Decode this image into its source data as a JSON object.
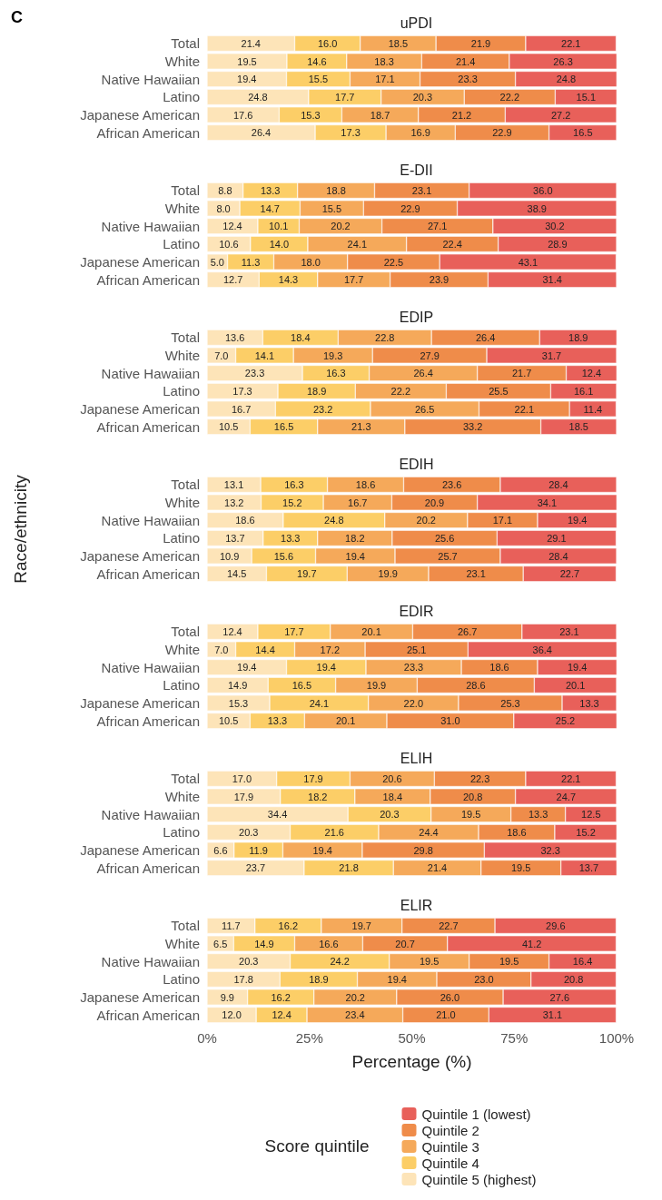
{
  "chart_data": [
    {
      "type": "bar",
      "title": "uPDI",
      "annotations": [
        "C"
      ],
      "orientation": "horizontal",
      "stacked": true,
      "tick_labels": "y",
      "xlim": [
        0,
        100
      ],
      "categories": [
        "Total",
        "White",
        "Native Hawaiian",
        "Latino",
        "Japanese American",
        "African American"
      ],
      "series": [
        {
          "color": "#fde4b8",
          "values": [
            21.4,
            19.5,
            19.4,
            24.8,
            17.6,
            26.4
          ],
          "value_labels": [
            "21.4",
            "19.5",
            "19.4",
            "24.8",
            "17.6",
            "26.4"
          ]
        },
        {
          "color": "#fcce67",
          "values": [
            16.0,
            14.6,
            15.5,
            17.7,
            15.3,
            17.3
          ],
          "value_labels": [
            "16.0",
            "14.6",
            "15.5",
            "17.7",
            "15.3",
            "17.3"
          ]
        },
        {
          "color": "#f5a95a",
          "values": [
            18.5,
            18.3,
            17.1,
            20.3,
            18.7,
            16.9
          ],
          "value_labels": [
            "18.5",
            "18.3",
            "17.1",
            "20.3",
            "18.7",
            "16.9"
          ]
        },
        {
          "color": "#ef8c4a",
          "values": [
            21.9,
            21.4,
            23.3,
            22.2,
            21.2,
            22.9
          ],
          "value_labels": [
            "21.9",
            "21.4",
            "23.3",
            "22.2",
            "21.2",
            "22.9"
          ]
        },
        {
          "color": "#e8605a",
          "values": [
            22.1,
            26.3,
            24.8,
            15.1,
            27.2,
            16.5
          ],
          "value_labels": [
            "22.1",
            "26.3",
            "24.8",
            "15.1",
            "27.2",
            "16.5"
          ]
        }
      ]
    },
    {
      "type": "bar",
      "title": "E-DII",
      "orientation": "horizontal",
      "stacked": true,
      "tick_labels": "y",
      "xlim": [
        0,
        100
      ],
      "categories": [
        "Total",
        "White",
        "Native Hawaiian",
        "Latino",
        "Japanese American",
        "African American"
      ],
      "series": [
        {
          "color": "#fde4b8",
          "values": [
            8.8,
            8.0,
            12.4,
            10.6,
            5.0,
            12.7
          ],
          "value_labels": [
            "8.8",
            "8.0",
            "12.4",
            "10.6",
            "5.0",
            "12.7"
          ]
        },
        {
          "color": "#fcce67",
          "values": [
            13.3,
            14.7,
            10.1,
            14.0,
            11.3,
            14.3
          ],
          "value_labels": [
            "13.3",
            "14.7",
            "10.1",
            "14.0",
            "11.3",
            "14.3"
          ]
        },
        {
          "color": "#f5a95a",
          "values": [
            18.8,
            15.5,
            20.2,
            24.1,
            18.0,
            17.7
          ],
          "value_labels": [
            "18.8",
            "15.5",
            "20.2",
            "24.1",
            "18.0",
            "17.7"
          ]
        },
        {
          "color": "#ef8c4a",
          "values": [
            23.1,
            22.9,
            27.1,
            22.4,
            22.5,
            23.9
          ],
          "value_labels": [
            "23.1",
            "22.9",
            "27.1",
            "22.4",
            "22.5",
            "23.9"
          ]
        },
        {
          "color": "#e8605a",
          "values": [
            36.0,
            38.9,
            30.2,
            28.9,
            43.1,
            31.4
          ],
          "value_labels": [
            "36.0",
            "38.9",
            "30.2",
            "28.9",
            "43.1",
            "31.4"
          ]
        }
      ]
    },
    {
      "type": "bar",
      "title": "EDIP",
      "orientation": "horizontal",
      "stacked": true,
      "tick_labels": "y",
      "xlim": [
        0,
        100
      ],
      "categories": [
        "Total",
        "White",
        "Native Hawaiian",
        "Latino",
        "Japanese American",
        "African American"
      ],
      "series": [
        {
          "color": "#fde4b8",
          "values": [
            13.6,
            7.0,
            23.3,
            17.3,
            16.7,
            10.5
          ],
          "value_labels": [
            "13.6",
            "7.0",
            "23.3",
            "17.3",
            "16.7",
            "10.5"
          ]
        },
        {
          "color": "#fcce67",
          "values": [
            18.4,
            14.1,
            16.3,
            18.9,
            23.2,
            16.5
          ],
          "value_labels": [
            "18.4",
            "14.1",
            "16.3",
            "18.9",
            "23.2",
            "16.5"
          ]
        },
        {
          "color": "#f5a95a",
          "values": [
            22.8,
            19.3,
            26.4,
            22.2,
            26.5,
            21.3
          ],
          "value_labels": [
            "22.8",
            "19.3",
            "26.4",
            "22.2",
            "26.5",
            "21.3"
          ]
        },
        {
          "color": "#ef8c4a",
          "values": [
            26.4,
            27.9,
            21.7,
            25.5,
            22.1,
            33.2
          ],
          "value_labels": [
            "26.4",
            "27.9",
            "21.7",
            "25.5",
            "22.1",
            "33.2"
          ]
        },
        {
          "color": "#e8605a",
          "values": [
            18.9,
            31.7,
            12.4,
            16.1,
            11.4,
            18.5
          ],
          "value_labels": [
            "18.9",
            "31.7",
            "12.4",
            "16.1",
            "11.4",
            "18.5"
          ]
        }
      ]
    },
    {
      "type": "bar",
      "title": "EDIH",
      "ylabel": "Race/ethnicity",
      "orientation": "horizontal",
      "stacked": true,
      "tick_labels": "y",
      "xlim": [
        0,
        100
      ],
      "categories": [
        "Total",
        "White",
        "Native Hawaiian",
        "Latino",
        "Japanese American",
        "African American"
      ],
      "series": [
        {
          "color": "#fde4b8",
          "values": [
            13.1,
            13.2,
            18.6,
            13.7,
            10.9,
            14.5
          ],
          "value_labels": [
            "13.1",
            "13.2",
            "18.6",
            "13.7",
            "10.9",
            "14.5"
          ]
        },
        {
          "color": "#fcce67",
          "values": [
            16.3,
            15.2,
            24.8,
            13.3,
            15.6,
            19.7
          ],
          "value_labels": [
            "16.3",
            "15.2",
            "24.8",
            "13.3",
            "15.6",
            "19.7"
          ]
        },
        {
          "color": "#f5a95a",
          "values": [
            18.6,
            16.7,
            20.2,
            18.2,
            19.4,
            19.9
          ],
          "value_labels": [
            "18.6",
            "16.7",
            "20.2",
            "18.2",
            "19.4",
            "19.9"
          ]
        },
        {
          "color": "#ef8c4a",
          "values": [
            23.6,
            20.9,
            17.1,
            25.6,
            25.7,
            23.1
          ],
          "value_labels": [
            "23.6",
            "20.9",
            "17.1",
            "25.6",
            "25.7",
            "23.1"
          ]
        },
        {
          "color": "#e8605a",
          "values": [
            28.4,
            34.1,
            19.4,
            29.1,
            28.4,
            22.7
          ],
          "value_labels": [
            "28.4",
            "34.1",
            "19.4",
            "29.1",
            "28.4",
            "22.7"
          ]
        }
      ]
    },
    {
      "type": "bar",
      "title": "EDIR",
      "orientation": "horizontal",
      "stacked": true,
      "tick_labels": "y",
      "xlim": [
        0,
        100
      ],
      "categories": [
        "Total",
        "White",
        "Native Hawaiian",
        "Latino",
        "Japanese American",
        "African American"
      ],
      "series": [
        {
          "color": "#fde4b8",
          "values": [
            12.4,
            7.0,
            19.4,
            14.9,
            15.3,
            10.5
          ],
          "value_labels": [
            "12.4",
            "7.0",
            "19.4",
            "14.9",
            "15.3",
            "10.5"
          ]
        },
        {
          "color": "#fcce67",
          "values": [
            17.7,
            14.4,
            19.4,
            16.5,
            24.1,
            13.3
          ],
          "value_labels": [
            "17.7",
            "14.4",
            "19.4",
            "16.5",
            "24.1",
            "13.3"
          ]
        },
        {
          "color": "#f5a95a",
          "values": [
            20.1,
            17.2,
            23.3,
            19.9,
            22.0,
            20.1
          ],
          "value_labels": [
            "20.1",
            "17.2",
            "23.3",
            "19.9",
            "22.0",
            "20.1"
          ]
        },
        {
          "color": "#ef8c4a",
          "values": [
            26.7,
            25.1,
            18.6,
            28.6,
            25.3,
            31.0
          ],
          "value_labels": [
            "26.7",
            "25.1",
            "18.6",
            "28.6",
            "25.3",
            "31.0"
          ]
        },
        {
          "color": "#e8605a",
          "values": [
            23.1,
            36.4,
            19.4,
            20.1,
            13.3,
            25.2
          ],
          "value_labels": [
            "23.1",
            "36.4",
            "19.4",
            "20.1",
            "13.3",
            "25.2"
          ]
        }
      ]
    },
    {
      "type": "bar",
      "title": "ELIH",
      "orientation": "horizontal",
      "stacked": true,
      "tick_labels": "y",
      "xlim": [
        0,
        100
      ],
      "categories": [
        "Total",
        "White",
        "Native Hawaiian",
        "Latino",
        "Japanese American",
        "African American"
      ],
      "series": [
        {
          "color": "#fde4b8",
          "values": [
            17.0,
            17.9,
            34.4,
            20.3,
            6.6,
            23.7
          ],
          "value_labels": [
            "17.0",
            "17.9",
            "34.4",
            "20.3",
            "6.6",
            "23.7"
          ]
        },
        {
          "color": "#fcce67",
          "values": [
            17.9,
            18.2,
            20.3,
            21.6,
            11.9,
            21.8
          ],
          "value_labels": [
            "17.9",
            "18.2",
            "20.3",
            "21.6",
            "11.9",
            "21.8"
          ]
        },
        {
          "color": "#f5a95a",
          "values": [
            20.6,
            18.4,
            19.5,
            24.4,
            19.4,
            21.4
          ],
          "value_labels": [
            "20.6",
            "18.4",
            "19.5",
            "24.4",
            "19.4",
            "21.4"
          ]
        },
        {
          "color": "#ef8c4a",
          "values": [
            22.3,
            20.8,
            13.3,
            18.6,
            29.8,
            19.5
          ],
          "value_labels": [
            "22.3",
            "20.8",
            "13.3",
            "18.6",
            "29.8",
            "19.5"
          ]
        },
        {
          "color": "#e8605a",
          "values": [
            22.1,
            24.7,
            12.5,
            15.2,
            32.3,
            13.7
          ],
          "value_labels": [
            "22.1",
            "24.7",
            "12.5",
            "15.2",
            "32.3",
            "13.7"
          ]
        }
      ]
    },
    {
      "type": "bar",
      "title": "ELIR",
      "xlabel": "Percentage (%)",
      "legend": "bottom",
      "legend_title": "Score quintile",
      "orientation": "horizontal",
      "stacked": true,
      "xlim": [
        0,
        100
      ],
      "xticks": [
        {
          "value": 0,
          "label": "0%"
        },
        {
          "value": 25,
          "label": "25%"
        },
        {
          "value": 50,
          "label": "50%"
        },
        {
          "value": 75,
          "label": "75%"
        },
        {
          "value": 100,
          "label": "100%"
        }
      ],
      "categories": [
        "Total",
        "White",
        "Native Hawaiian",
        "Latino",
        "Japanese American",
        "African American"
      ],
      "series": [
        {
          "name": "Quintile 5 (highest)",
          "color": "#fde4b8",
          "values": [
            11.7,
            6.5,
            20.3,
            17.8,
            9.9,
            12.0
          ],
          "value_labels": [
            "11.7",
            "6.5",
            "20.3",
            "17.8",
            "9.9",
            "12.0"
          ]
        },
        {
          "name": "Quintile 4",
          "color": "#fcce67",
          "values": [
            16.2,
            14.9,
            24.2,
            18.9,
            16.2,
            12.4
          ],
          "value_labels": [
            "16.2",
            "14.9",
            "24.2",
            "18.9",
            "16.2",
            "12.4"
          ]
        },
        {
          "name": "Quintile 3",
          "color": "#f5a95a",
          "values": [
            19.7,
            16.6,
            19.5,
            19.4,
            20.2,
            23.4
          ],
          "value_labels": [
            "19.7",
            "16.6",
            "19.5",
            "19.4",
            "20.2",
            "23.4"
          ]
        },
        {
          "name": "Quintile 2",
          "color": "#ef8c4a",
          "values": [
            22.7,
            20.7,
            19.5,
            23.0,
            26.0,
            21.0
          ],
          "value_labels": [
            "22.7",
            "20.7",
            "19.5",
            "23.0",
            "26.0",
            "21.0"
          ]
        },
        {
          "name": "Quintile 1 (lowest)",
          "color": "#e8605a",
          "values": [
            29.6,
            41.2,
            16.4,
            20.8,
            27.6,
            31.1
          ],
          "value_labels": [
            "29.6",
            "41.2",
            "16.4",
            "20.8",
            "27.6",
            "31.1"
          ]
        }
      ]
    }
  ]
}
